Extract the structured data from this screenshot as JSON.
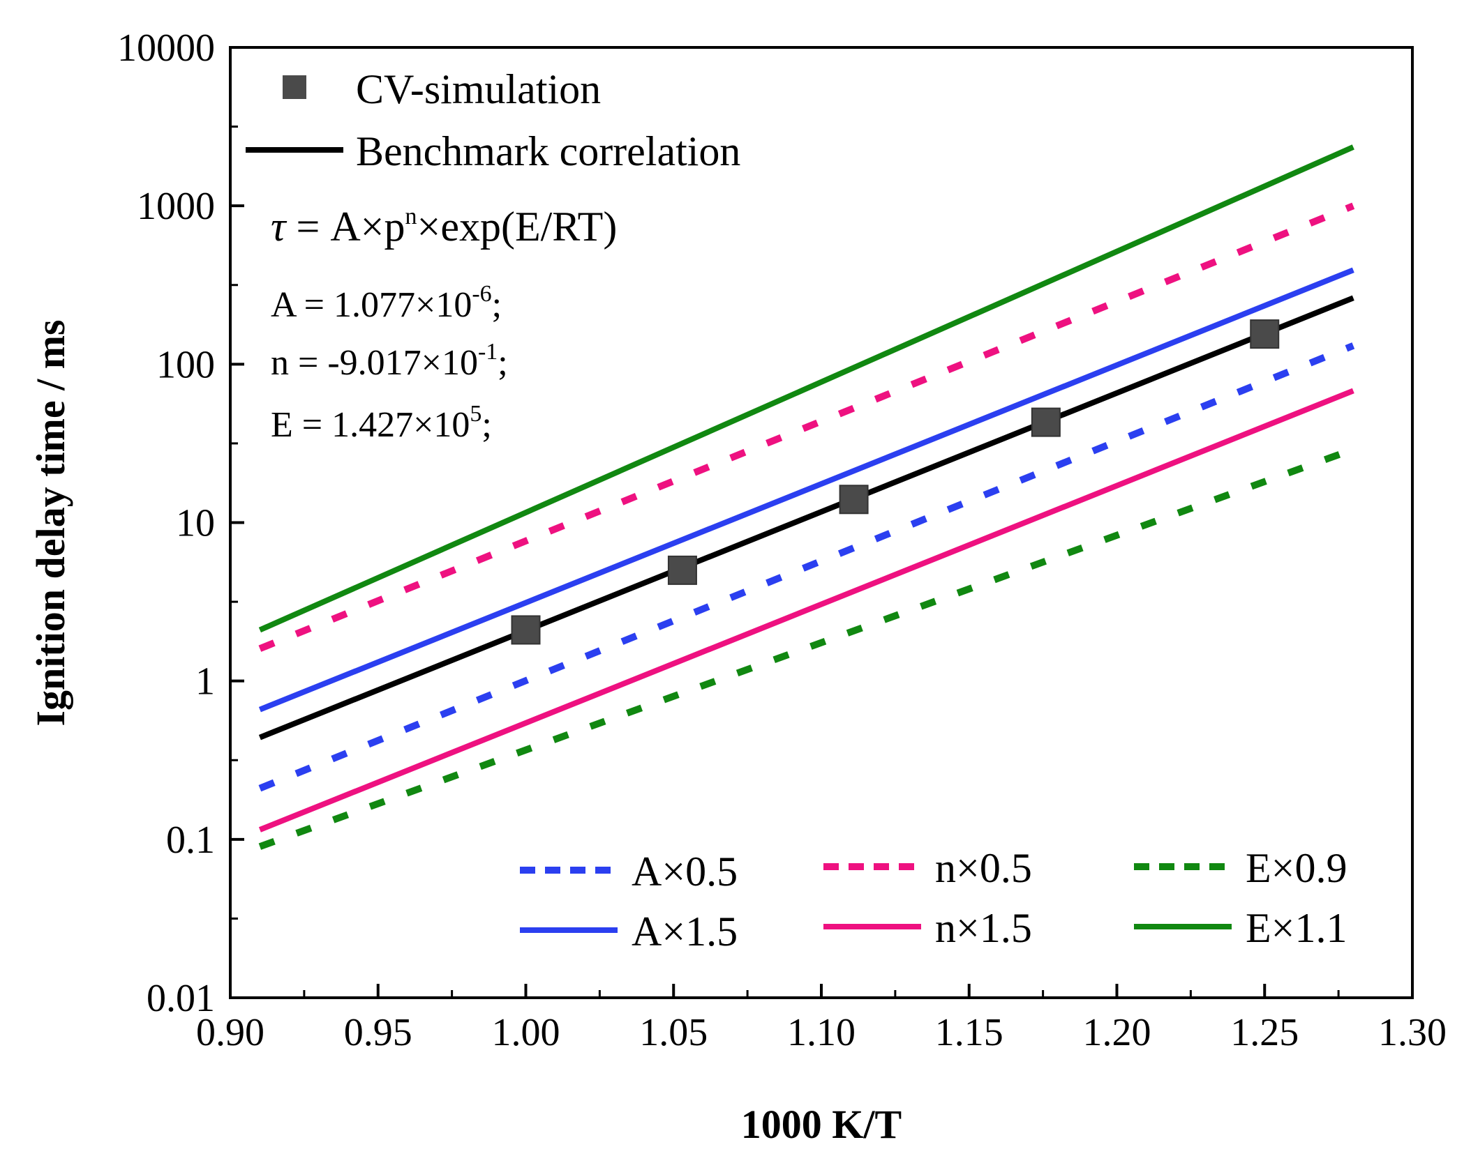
{
  "chart_data": {
    "type": "line",
    "title": "",
    "xlabel": "1000 K/T",
    "ylabel": "Ignition delay time / ms",
    "xlim": [
      0.9,
      1.3
    ],
    "ylim": [
      0.01,
      10000
    ],
    "yscale": "log",
    "x_ticks": [
      "0.90",
      "0.95",
      "1.00",
      "1.05",
      "1.10",
      "1.15",
      "1.20",
      "1.25",
      "1.30"
    ],
    "y_ticks": [
      "0.01",
      "0.1",
      "1",
      "10",
      "100",
      "1000",
      "10000"
    ],
    "grid": false,
    "series": [
      {
        "name": "CV-simulation",
        "kind": "scatter",
        "color": "#4a4a4a",
        "marker": "square",
        "points": [
          [
            1.0,
            2.1
          ],
          [
            1.053,
            5.0
          ],
          [
            1.111,
            14.0
          ],
          [
            1.176,
            43.0
          ],
          [
            1.25,
            155.0
          ]
        ]
      },
      {
        "name": "Benchmark correlation",
        "kind": "line",
        "color": "#000000",
        "dash": "solid",
        "points": [
          [
            0.91,
            0.44
          ],
          [
            1.28,
            262.0
          ]
        ]
      },
      {
        "name": "A×0.5",
        "kind": "line",
        "color": "#2b3ff0",
        "dash": "dashed",
        "points": [
          [
            0.91,
            0.21
          ],
          [
            1.28,
            131.0
          ]
        ]
      },
      {
        "name": "A×1.5",
        "kind": "line",
        "color": "#2b3ff0",
        "dash": "solid",
        "points": [
          [
            0.91,
            0.66
          ],
          [
            1.28,
            393.0
          ]
        ]
      },
      {
        "name": "n×0.5",
        "kind": "line",
        "color": "#ee1180",
        "dash": "dashed",
        "points": [
          [
            0.91,
            1.6
          ],
          [
            1.28,
            1000.0
          ]
        ]
      },
      {
        "name": "n×1.5",
        "kind": "line",
        "color": "#ee1180",
        "dash": "solid",
        "points": [
          [
            0.91,
            0.115
          ],
          [
            1.28,
            68.0
          ]
        ]
      },
      {
        "name": "E×0.9",
        "kind": "line",
        "color": "#118811",
        "dash": "dashed",
        "points": [
          [
            0.91,
            0.09
          ],
          [
            1.28,
            29.0
          ]
        ]
      },
      {
        "name": "E×1.1",
        "kind": "line",
        "color": "#118811",
        "dash": "solid",
        "points": [
          [
            0.91,
            2.1
          ],
          [
            1.28,
            2350.0
          ]
        ]
      }
    ],
    "legend_top": [
      "CV-simulation",
      "Benchmark correlation"
    ],
    "legend_bottom": [
      "A×0.5",
      "n×0.5",
      "E×0.9",
      "A×1.5",
      "n×1.5",
      "E×1.1"
    ],
    "legend_placement": "top-left and bottom-right",
    "annotations": {
      "formula_tau": "τ",
      "formula_main": " = A×p",
      "formula_sup": "n",
      "formula_rest": "×exp(E/RT)",
      "a_base": "A = 1.077×10",
      "a_exp": "-6",
      "n_base": "n = -9.017×10",
      "n_exp": "-1",
      "e_base": "E = 1.427×10",
      "e_exp": "5",
      "terminator": ";"
    }
  }
}
